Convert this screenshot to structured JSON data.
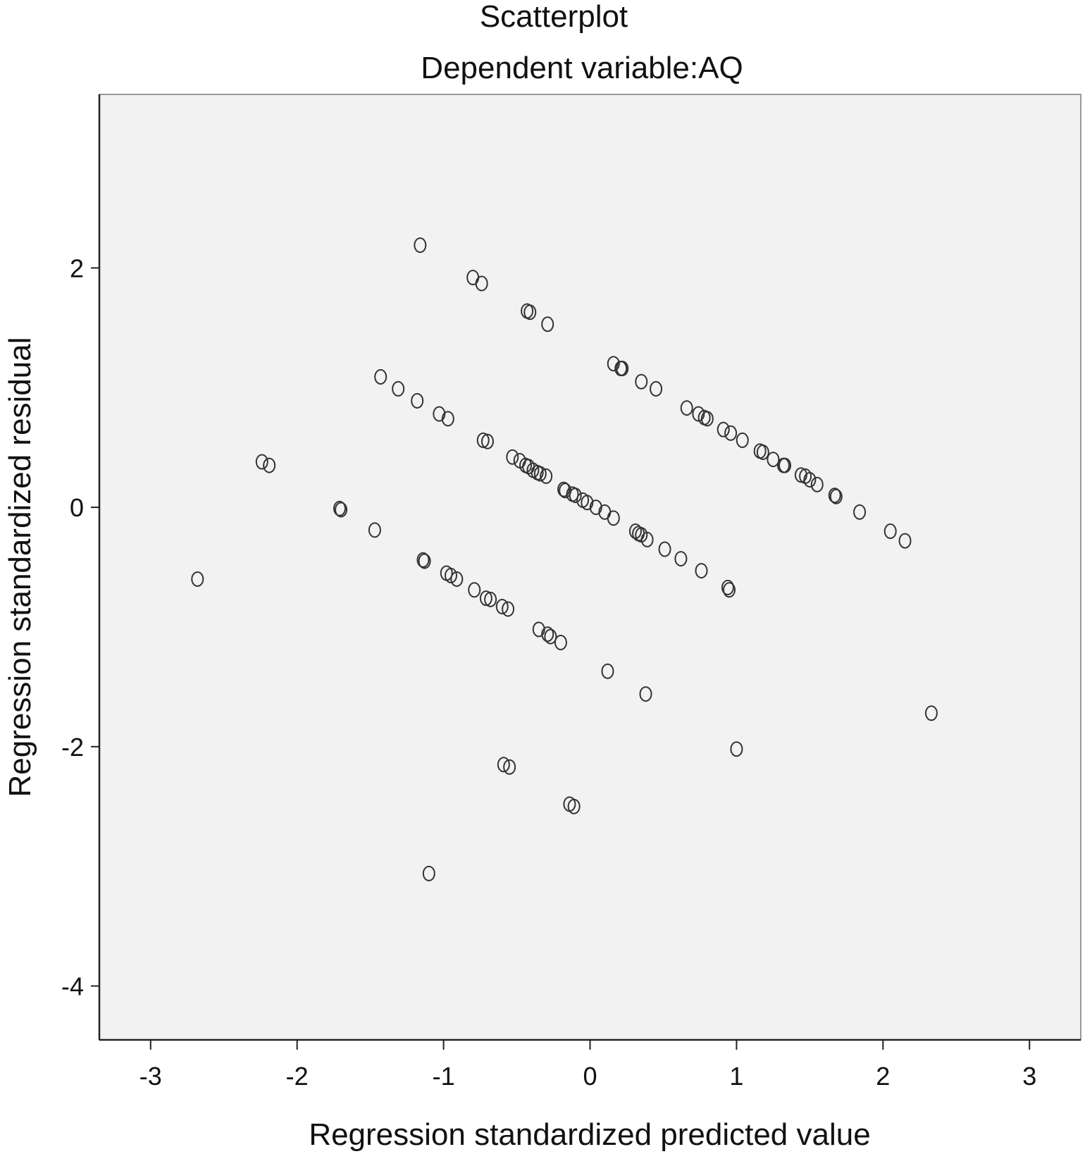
{
  "chart_data": {
    "type": "scatter",
    "title": "Scatterplot",
    "subtitle": "Dependent variable:AQ",
    "xlabel": "Regression standardized predicted value",
    "ylabel": "Regression standardized residual",
    "xlim": [
      -3.35,
      3.35
    ],
    "ylim": [
      -4.45,
      3.45
    ],
    "x_ticks": [
      -3,
      -2,
      -1,
      0,
      1,
      2,
      3
    ],
    "x_tick_labels": [
      "-3",
      "-2",
      "-1",
      "0",
      "1",
      "2",
      "3"
    ],
    "y_ticks": [
      2,
      0,
      -2,
      -4
    ],
    "y_tick_labels": [
      "2",
      "0",
      "-2",
      "-4"
    ],
    "grid": false,
    "legend": "none",
    "colors": {
      "plot_background": "#f1f2f1",
      "plot_border": "#999999",
      "marker_stroke": "#333333",
      "text": "#111111"
    },
    "marker": "hollow-circle",
    "points": [
      [
        -1.16,
        2.19
      ],
      [
        -0.8,
        1.92
      ],
      [
        -0.74,
        1.87
      ],
      [
        -0.43,
        1.64
      ],
      [
        -0.41,
        1.63
      ],
      [
        -0.29,
        1.53
      ],
      [
        0.16,
        1.2
      ],
      [
        0.21,
        1.16
      ],
      [
        0.22,
        1.16
      ],
      [
        0.35,
        1.05
      ],
      [
        0.45,
        0.99
      ],
      [
        0.66,
        0.83
      ],
      [
        0.74,
        0.78
      ],
      [
        0.78,
        0.75
      ],
      [
        0.8,
        0.74
      ],
      [
        0.91,
        0.65
      ],
      [
        0.96,
        0.62
      ],
      [
        1.04,
        0.56
      ],
      [
        1.16,
        0.47
      ],
      [
        1.18,
        0.46
      ],
      [
        1.25,
        0.4
      ],
      [
        1.32,
        0.35
      ],
      [
        1.33,
        0.35
      ],
      [
        1.44,
        0.27
      ],
      [
        1.47,
        0.26
      ],
      [
        1.5,
        0.23
      ],
      [
        1.55,
        0.19
      ],
      [
        1.67,
        0.1
      ],
      [
        1.68,
        0.09
      ],
      [
        1.84,
        -0.04
      ],
      [
        2.05,
        -0.2
      ],
      [
        2.15,
        -0.28
      ],
      [
        -1.43,
        1.09
      ],
      [
        -1.31,
        0.99
      ],
      [
        -1.18,
        0.89
      ],
      [
        -1.03,
        0.78
      ],
      [
        -0.97,
        0.74
      ],
      [
        -0.73,
        0.56
      ],
      [
        -0.7,
        0.55
      ],
      [
        -0.53,
        0.42
      ],
      [
        -0.48,
        0.39
      ],
      [
        -0.44,
        0.35
      ],
      [
        -0.42,
        0.34
      ],
      [
        -0.39,
        0.31
      ],
      [
        -0.36,
        0.29
      ],
      [
        -0.34,
        0.28
      ],
      [
        -0.3,
        0.26
      ],
      [
        -0.18,
        0.15
      ],
      [
        -0.17,
        0.14
      ],
      [
        -0.12,
        0.11
      ],
      [
        -0.1,
        0.1
      ],
      [
        -0.05,
        0.06
      ],
      [
        -0.02,
        0.04
      ],
      [
        0.04,
        0.0
      ],
      [
        0.1,
        -0.04
      ],
      [
        0.16,
        -0.09
      ],
      [
        0.31,
        -0.2
      ],
      [
        0.33,
        -0.22
      ],
      [
        0.35,
        -0.23
      ],
      [
        0.39,
        -0.27
      ],
      [
        0.51,
        -0.35
      ],
      [
        0.62,
        -0.43
      ],
      [
        0.76,
        -0.53
      ],
      [
        0.94,
        -0.67
      ],
      [
        0.95,
        -0.69
      ],
      [
        -2.24,
        0.38
      ],
      [
        -2.19,
        0.35
      ],
      [
        -1.71,
        -0.01
      ],
      [
        -1.7,
        -0.02
      ],
      [
        -1.47,
        -0.19
      ],
      [
        -1.14,
        -0.44
      ],
      [
        -1.13,
        -0.45
      ],
      [
        -0.98,
        -0.55
      ],
      [
        -0.95,
        -0.57
      ],
      [
        -0.91,
        -0.6
      ],
      [
        -0.79,
        -0.69
      ],
      [
        -0.71,
        -0.76
      ],
      [
        -0.68,
        -0.77
      ],
      [
        -0.6,
        -0.83
      ],
      [
        -0.56,
        -0.85
      ],
      [
        -0.35,
        -1.02
      ],
      [
        -0.29,
        -1.06
      ],
      [
        -0.27,
        -1.08
      ],
      [
        -0.2,
        -1.13
      ],
      [
        0.12,
        -1.37
      ],
      [
        0.38,
        -1.56
      ],
      [
        -2.68,
        -0.6
      ],
      [
        -0.59,
        -2.15
      ],
      [
        -0.55,
        -2.17
      ],
      [
        -0.14,
        -2.48
      ],
      [
        -0.11,
        -2.5
      ],
      [
        -1.1,
        -3.06
      ],
      [
        1.0,
        -2.02
      ],
      [
        2.33,
        -1.72
      ]
    ]
  }
}
